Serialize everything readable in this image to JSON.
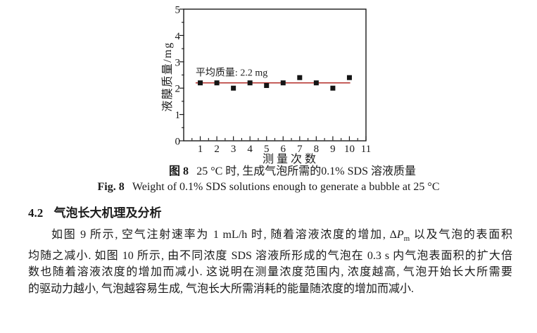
{
  "page": {
    "background": "#ffffff",
    "ink": "#1a1a1a"
  },
  "chart_data": {
    "type": "scatter",
    "x": [
      1,
      2,
      3,
      4,
      5,
      6,
      7,
      8,
      9,
      10
    ],
    "values": [
      2.2,
      2.2,
      2.0,
      2.2,
      2.1,
      2.2,
      2.4,
      2.2,
      2.0,
      2.4
    ],
    "title": "",
    "xlabel": "测量次数",
    "ylabel": "液膜质量/mg",
    "xlim": [
      0,
      11
    ],
    "ylim": [
      0,
      5
    ],
    "x_ticks": [
      1,
      2,
      3,
      4,
      5,
      6,
      7,
      8,
      9,
      10,
      11
    ],
    "y_ticks": [
      0,
      1,
      2,
      3,
      4,
      5
    ],
    "minor_tick_step": 0.5,
    "grid": false,
    "frame": true,
    "marker": {
      "shape": "square",
      "color": "#151515",
      "size": 7
    },
    "mean_line": {
      "value": 2.2,
      "x_start": 0.72,
      "x_end": 10.05,
      "color": "#b63531"
    },
    "annotation": {
      "text": "平均质量: 2.2 mg",
      "at_x": 0.72,
      "above_value": 2.2
    }
  },
  "captions": {
    "fig_cn_label": "图 8",
    "fig_cn_text": "25 °C 时, 生成气泡所需的0.1% SDS 溶液质量",
    "fig_en_label": "Fig. 8",
    "fig_en_text": "Weight of 0.1% SDS solutions enough to generate a bubble at 25 °C"
  },
  "section": {
    "number": "4.2",
    "title": "气泡长大机理及分析"
  },
  "paragraph": {
    "line1_a": "如图 9 所示, 空气注射速率为 1 mL/h 时, 随着溶液浓度的增加, Δ",
    "line1_var": "P",
    "line1_sub": "m",
    "line1_b": " 以及气泡的表面积",
    "line2": "均随之减小. 如图 10 所示, 由不同浓度 SDS 溶液所形成的气泡在 0.3 s 内气泡表面积的扩大倍",
    "line3": "数也随着溶液浓度的增加而减小. 这说明在测量浓度范围内, 浓度越高, 气泡开始长大所需要",
    "line4": "的驱动力越小, 气泡越容易生成, 气泡长大所需消耗的能量随浓度的增加而减小."
  }
}
